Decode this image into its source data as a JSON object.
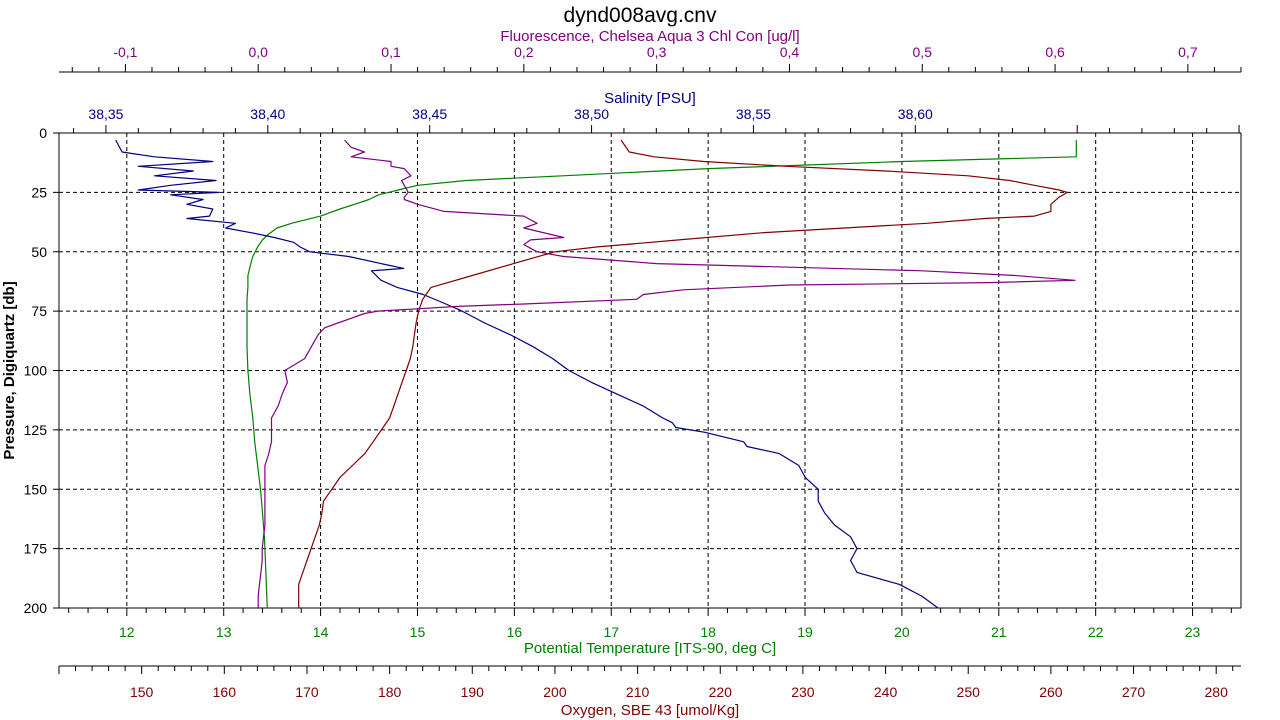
{
  "chart_data": {
    "type": "line",
    "title": "dynd008avg.cnv",
    "grid": true,
    "y_axis": {
      "label": "Pressure, Digiquartz [db]",
      "range": [
        0,
        200
      ],
      "inverted": true,
      "ticks": [
        0,
        25,
        50,
        75,
        100,
        125,
        150,
        175,
        200
      ],
      "tick_labels": [
        "0",
        "25",
        "50",
        "75",
        "100",
        "125",
        "150",
        "175",
        "200"
      ]
    },
    "x_axes": [
      {
        "key": "fluorescence",
        "label": "Fluorescence, Chelsea Aqua 3 Chl Con [ug/l]",
        "position": "top",
        "color": "#800080",
        "range": [
          -0.15,
          0.74
        ],
        "ticks": [
          -0.1,
          0.0,
          0.1,
          0.2,
          0.3,
          0.4,
          0.5,
          0.6,
          0.7
        ],
        "tick_labels": [
          "-0,1",
          "0,0",
          "0,1",
          "0,2",
          "0,3",
          "0,4",
          "0,5",
          "0,6",
          "0,7"
        ]
      },
      {
        "key": "salinity",
        "label": "Salinity [PSU]",
        "position": "top",
        "color": "#000080",
        "range": [
          38.3355,
          38.7006
        ],
        "ticks": [
          38.35,
          38.4,
          38.45,
          38.5,
          38.55,
          38.6
        ],
        "tick_labels": [
          "38,35",
          "38,40",
          "38,45",
          "38,50",
          "38,55",
          "38,60"
        ]
      },
      {
        "key": "temperature",
        "label": "Potential Temperature [ITS-90, deg C]",
        "position": "bottom",
        "color": "#008000",
        "range": [
          11.3,
          23.5
        ],
        "ticks": [
          12,
          13,
          14,
          15,
          16,
          17,
          18,
          19,
          20,
          21,
          22,
          23
        ],
        "tick_labels": [
          "12",
          "13",
          "14",
          "15",
          "16",
          "17",
          "18",
          "19",
          "20",
          "21",
          "22",
          "23"
        ]
      },
      {
        "key": "oxygen",
        "label": "Oxygen, SBE 43 [umol/Kg]",
        "position": "bottom",
        "color": "#800000",
        "range": [
          140,
          283
        ],
        "ticks": [
          150,
          160,
          170,
          180,
          190,
          200,
          210,
          220,
          230,
          240,
          250,
          260,
          270,
          280
        ],
        "tick_labels": [
          "150",
          "160",
          "170",
          "180",
          "190",
          "200",
          "210",
          "220",
          "230",
          "240",
          "250",
          "260",
          "270",
          "280"
        ]
      }
    ],
    "series": [
      {
        "axis": "temperature",
        "color": "#008000",
        "y": [
          3,
          10,
          12,
          15,
          18,
          20,
          22,
          24,
          25,
          26,
          28,
          30,
          32,
          35,
          38,
          40,
          43,
          45,
          48,
          52,
          55,
          60,
          65,
          70,
          75,
          80,
          90,
          100,
          110,
          120,
          130,
          140,
          150,
          160,
          170,
          180,
          190,
          200
        ],
        "x": [
          21.8,
          21.8,
          20.0,
          18.0,
          16.5,
          15.5,
          15.0,
          14.8,
          14.7,
          14.6,
          14.5,
          14.35,
          14.2,
          14.0,
          13.7,
          13.55,
          13.45,
          13.4,
          13.35,
          13.3,
          13.28,
          13.25,
          13.25,
          13.24,
          13.24,
          13.24,
          13.24,
          13.25,
          13.27,
          13.3,
          13.32,
          13.35,
          13.38,
          13.4,
          13.42,
          13.43,
          13.44,
          13.45
        ]
      },
      {
        "axis": "salinity",
        "color": "#000080",
        "y": [
          3,
          8,
          10,
          12,
          14,
          16,
          18,
          20,
          22,
          24,
          25,
          26,
          28,
          30,
          32,
          35,
          36,
          38,
          40,
          42,
          44,
          46,
          48,
          50,
          52,
          55,
          57,
          58,
          62,
          65,
          68,
          72,
          75,
          80,
          85,
          90,
          95,
          100,
          105,
          110,
          115,
          120,
          122,
          124,
          126,
          130,
          132,
          135,
          140,
          145,
          150,
          155,
          160,
          165,
          170,
          175,
          180,
          185,
          190,
          195,
          200
        ],
        "x": [
          38.353,
          38.355,
          38.365,
          38.383,
          38.36,
          38.377,
          38.365,
          38.384,
          38.37,
          38.36,
          38.385,
          38.37,
          38.38,
          38.375,
          38.383,
          38.382,
          38.375,
          38.39,
          38.387,
          38.395,
          38.402,
          38.408,
          38.41,
          38.413,
          38.425,
          38.435,
          38.442,
          38.432,
          38.435,
          38.44,
          38.448,
          38.455,
          38.46,
          38.467,
          38.475,
          38.482,
          38.488,
          38.493,
          38.5,
          38.508,
          38.516,
          38.522,
          38.525,
          38.526,
          38.535,
          38.547,
          38.548,
          38.558,
          38.564,
          38.566,
          38.57,
          38.57,
          38.572,
          38.575,
          38.58,
          38.582,
          38.58,
          38.582,
          38.595,
          38.602,
          38.607
        ]
      },
      {
        "axis": "fluorescence",
        "color": "#800080",
        "y": [
          3,
          6,
          8,
          10,
          12,
          14,
          15,
          18,
          20,
          22,
          25,
          27,
          28,
          30,
          33,
          35,
          38,
          40,
          44,
          45,
          47,
          50,
          52,
          55,
          58,
          60,
          62,
          63,
          64,
          66,
          68,
          70,
          72,
          73,
          74,
          75,
          76,
          78,
          80,
          82,
          85,
          90,
          95,
          100,
          105,
          110,
          115,
          120,
          125,
          130,
          135,
          140,
          145,
          150,
          155,
          160,
          165,
          170,
          175,
          180,
          185,
          190,
          195,
          200
        ],
        "x": [
          0.065,
          0.07,
          0.08,
          0.07,
          0.1,
          0.1,
          0.11,
          0.115,
          0.108,
          0.11,
          0.113,
          0.11,
          0.11,
          0.12,
          0.14,
          0.2,
          0.21,
          0.2,
          0.23,
          0.205,
          0.2,
          0.21,
          0.23,
          0.3,
          0.5,
          0.57,
          0.615,
          0.55,
          0.4,
          0.32,
          0.29,
          0.285,
          0.2,
          0.15,
          0.12,
          0.09,
          0.08,
          0.07,
          0.06,
          0.05,
          0.045,
          0.04,
          0.035,
          0.02,
          0.022,
          0.018,
          0.015,
          0.01,
          0.01,
          0.01,
          0.008,
          0.005,
          0.005,
          0.005,
          0.005,
          0.005,
          0.005,
          0.004,
          0.003,
          0.003,
          0.002,
          0.001,
          0.0,
          0.0
        ]
      },
      {
        "axis": "oxygen",
        "color": "#800000",
        "y": [
          3,
          8,
          10,
          12,
          14,
          16,
          18,
          20,
          22,
          24,
          25,
          27,
          30,
          33,
          35,
          36,
          38,
          40,
          42,
          45,
          48,
          50,
          55,
          60,
          65,
          70,
          75,
          80,
          85,
          90,
          95,
          100,
          105,
          110,
          115,
          120,
          125,
          130,
          135,
          140,
          145,
          150,
          155,
          160,
          165,
          170,
          175,
          180,
          185,
          190,
          195,
          200
        ],
        "x": [
          208,
          209,
          212,
          218,
          228,
          240,
          250,
          255,
          258,
          261,
          262,
          261,
          260,
          260,
          258,
          252,
          245,
          235,
          225,
          215,
          205,
          200,
          195,
          190,
          185,
          184,
          183.5,
          183.2,
          183,
          182.8,
          182.5,
          182,
          181.5,
          181,
          180.5,
          180,
          179,
          178,
          177,
          175.5,
          174,
          173,
          172,
          171.8,
          171.5,
          171,
          170.5,
          170,
          169.5,
          169,
          169,
          169
        ]
      }
    ]
  }
}
